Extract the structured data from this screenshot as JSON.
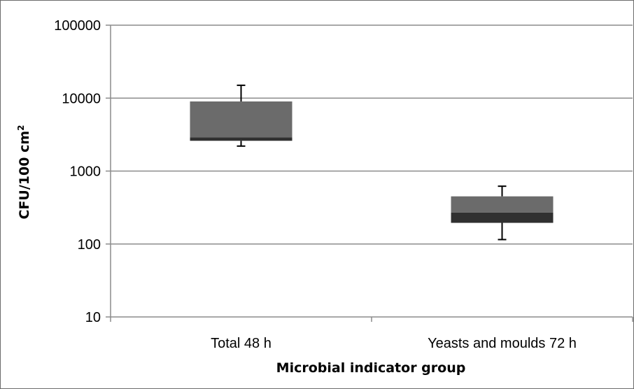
{
  "chart_data": {
    "type": "box",
    "title": "",
    "xlabel": "Microbial indicator group",
    "ylabel": "CFU/100 cm",
    "ylabel_superscript": "2",
    "yscale": "log",
    "ylim": [
      10,
      100000
    ],
    "yticks": [
      10,
      100,
      1000,
      10000,
      100000
    ],
    "ytick_labels": [
      "10",
      "100",
      "1000",
      "10000",
      "100000"
    ],
    "grid": true,
    "categories": [
      "Total 48 h",
      "Yeasts and moulds 72 h"
    ],
    "boxes": [
      {
        "category": "Total 48 h",
        "min": 2200,
        "q1": 2600,
        "median": 2900,
        "q3": 9000,
        "max": 15000
      },
      {
        "category": "Yeasts and moulds 72 h",
        "min": 115,
        "q1": 195,
        "median": 270,
        "q3": 450,
        "max": 620
      }
    ],
    "colors": {
      "upper_box": "#6b6b6b",
      "lower_box": "#303030",
      "whisker": "#000000",
      "grid": "#8c8c8c"
    }
  }
}
